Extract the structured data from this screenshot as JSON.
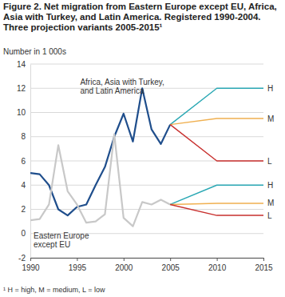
{
  "chart_data": {
    "type": "line",
    "title": "Figure 2. Net migration from Eastern Europe except EU, Africa, Asia with Turkey, and Latin America. Registered 1990-2004. Three projection variants 2005-2015¹",
    "y_label": "Number in 1 000s",
    "footnote": "¹ H = high, M = medium, L = low",
    "xlim": [
      1990,
      2015
    ],
    "xticks": [
      1990,
      1995,
      2000,
      2005,
      2010,
      2015
    ],
    "ylim": [
      -2,
      14
    ],
    "yticks": [
      -2,
      0,
      2,
      4,
      6,
      8,
      10,
      12,
      14
    ],
    "grid": true,
    "series": [
      {
        "name": "Africa, Asia with Turkey, and Latin America",
        "color": "#1f4e8c",
        "x": [
          1990,
          1991,
          1992,
          1993,
          1994,
          1995,
          1996,
          1997,
          1998,
          1999,
          2000,
          2001,
          2002,
          2003,
          2004,
          2005
        ],
        "values": [
          5.0,
          4.9,
          4.0,
          2.0,
          1.5,
          2.2,
          2.4,
          4.0,
          5.5,
          8.0,
          9.9,
          7.6,
          12.0,
          8.6,
          7.4,
          9.0
        ]
      },
      {
        "name": "Eastern Europe except EU",
        "color": "#c8c8c8",
        "x": [
          1990,
          1991,
          1992,
          1993,
          1994,
          1995,
          1996,
          1997,
          1998,
          1999,
          2000,
          2001,
          2002,
          2003,
          2004,
          2005
        ],
        "values": [
          1.1,
          1.2,
          2.4,
          7.3,
          3.5,
          2.4,
          0.9,
          1.0,
          1.6,
          8.2,
          1.3,
          0.6,
          2.6,
          2.4,
          2.8,
          2.4
        ]
      },
      {
        "name": "H",
        "color": "#2aa8b4",
        "x": [
          2005,
          2010,
          2015
        ],
        "values": [
          9.0,
          12.0,
          12.0
        ]
      },
      {
        "name": "M",
        "color": "#f0b050",
        "x": [
          2005,
          2010,
          2015
        ],
        "values": [
          9.0,
          9.5,
          9.5
        ]
      },
      {
        "name": "L",
        "color": "#c8302e",
        "x": [
          2005,
          2010,
          2015
        ],
        "values": [
          9.0,
          6.0,
          6.0
        ]
      },
      {
        "name": "H",
        "color": "#2aa8b4",
        "x": [
          2005,
          2010,
          2015
        ],
        "values": [
          2.4,
          4.0,
          4.0
        ]
      },
      {
        "name": "M",
        "color": "#f0b050",
        "x": [
          2005,
          2010,
          2015
        ],
        "values": [
          2.4,
          2.5,
          2.5
        ]
      },
      {
        "name": "L",
        "color": "#c8302e",
        "x": [
          2005,
          2010,
          2015
        ],
        "values": [
          2.4,
          1.5,
          1.5
        ]
      }
    ]
  }
}
